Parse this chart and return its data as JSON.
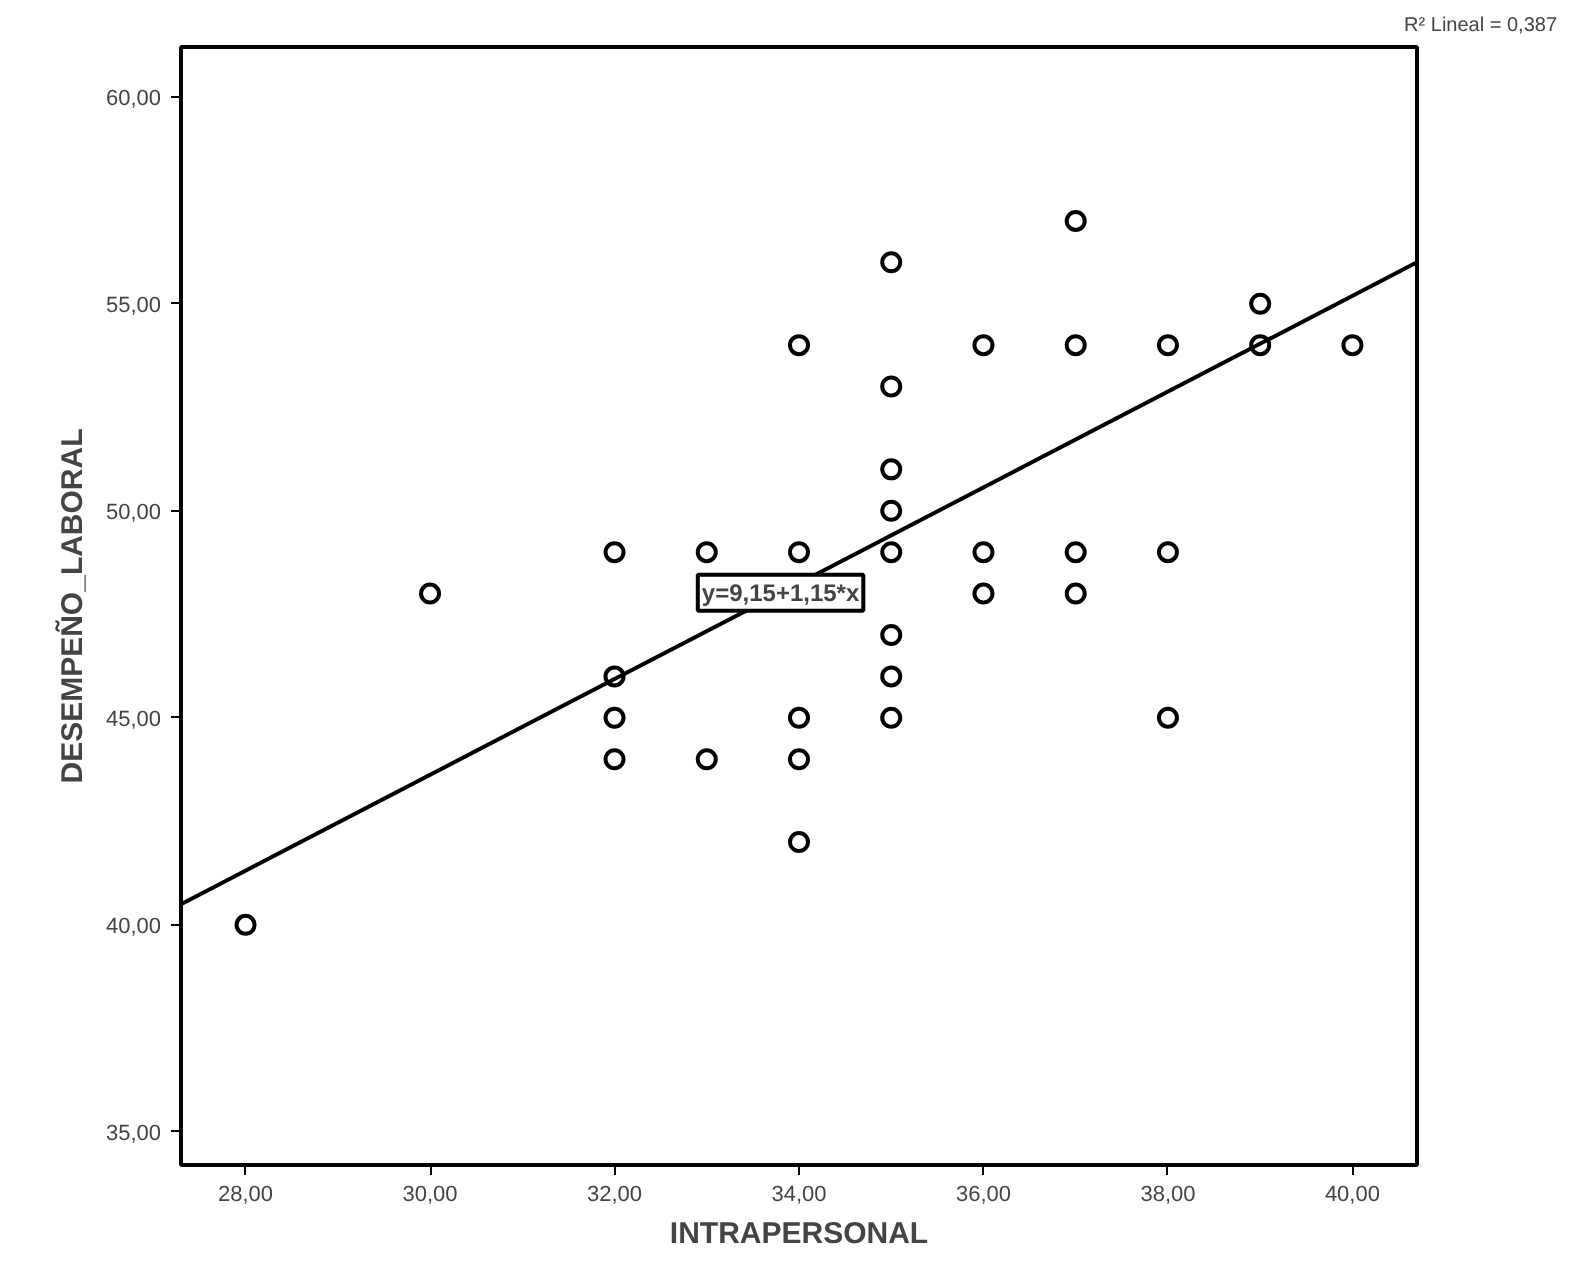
{
  "chart_data": {
    "type": "scatter",
    "xlabel": "INTRAPERSONAL",
    "ylabel": "DESEMPEÑO_LABORAL",
    "xlim": [
      27.3,
      40.7
    ],
    "ylim": [
      34.2,
      61.2
    ],
    "xticks": [
      {
        "value": 28,
        "label": "28,00"
      },
      {
        "value": 30,
        "label": "30,00"
      },
      {
        "value": 32,
        "label": "32,00"
      },
      {
        "value": 34,
        "label": "34,00"
      },
      {
        "value": 36,
        "label": "36,00"
      },
      {
        "value": 38,
        "label": "38,00"
      },
      {
        "value": 40,
        "label": "40,00"
      }
    ],
    "yticks": [
      {
        "value": 35,
        "label": "35,00"
      },
      {
        "value": 40,
        "label": "40,00"
      },
      {
        "value": 45,
        "label": "45,00"
      },
      {
        "value": 50,
        "label": "50,00"
      },
      {
        "value": 55,
        "label": "55,00"
      },
      {
        "value": 60,
        "label": "60,00"
      }
    ],
    "grid": false,
    "series": [
      {
        "marker": "circle",
        "color": "#000000",
        "x": [
          28,
          30,
          32,
          32,
          32,
          32,
          33,
          33,
          34,
          34,
          34,
          34,
          34,
          35,
          35,
          35,
          35,
          35,
          35,
          35,
          35,
          36,
          36,
          36,
          37,
          37,
          37,
          37,
          38,
          38,
          38,
          39,
          39,
          40
        ],
        "values": [
          40,
          48,
          49,
          46,
          45,
          44,
          49,
          44,
          54,
          49,
          45,
          44,
          42,
          56,
          53,
          51,
          50,
          49,
          47,
          46,
          45,
          54,
          49,
          48,
          57,
          54,
          49,
          48,
          54,
          49,
          45,
          55,
          54,
          54
        ]
      },
      {
        "type": "line",
        "color": "#000000",
        "x": [
          27.3,
          40.7
        ],
        "values": [
          40.5,
          56.0
        ]
      }
    ],
    "annotations": [
      {
        "text": "y=9,15+1,15*x",
        "x": 33.8,
        "y": 48.02
      },
      "R² Lineal = 0,387"
    ]
  }
}
